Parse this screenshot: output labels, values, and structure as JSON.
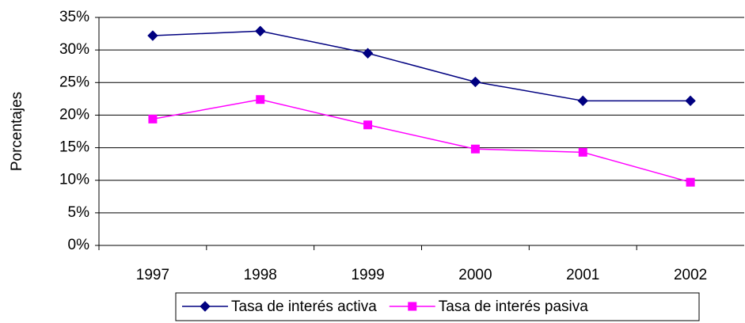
{
  "chart_data": {
    "type": "line",
    "y_label": "Porcentajes",
    "categories": [
      "1997",
      "1998",
      "1999",
      "2000",
      "2001",
      "2002"
    ],
    "series": [
      {
        "name": "Tasa de interés activa",
        "color": "#000080",
        "marker": "diamond",
        "values": [
          32.2,
          32.9,
          29.5,
          25.1,
          22.2,
          22.2
        ]
      },
      {
        "name": "Tasa de interés pasiva",
        "color": "#ff00ff",
        "marker": "square",
        "values": [
          19.4,
          22.4,
          18.5,
          14.8,
          14.3,
          9.7
        ]
      }
    ],
    "ylim": [
      0,
      35
    ],
    "yticks": [
      {
        "value": 0,
        "label": "0%"
      },
      {
        "value": 5,
        "label": "5%"
      },
      {
        "value": 10,
        "label": "10%"
      },
      {
        "value": 15,
        "label": "15%"
      },
      {
        "value": 20,
        "label": "20%"
      },
      {
        "value": 25,
        "label": "25%"
      },
      {
        "value": 30,
        "label": "30%"
      },
      {
        "value": 35,
        "label": "35%"
      }
    ],
    "grid": true,
    "legend": "bottom"
  }
}
